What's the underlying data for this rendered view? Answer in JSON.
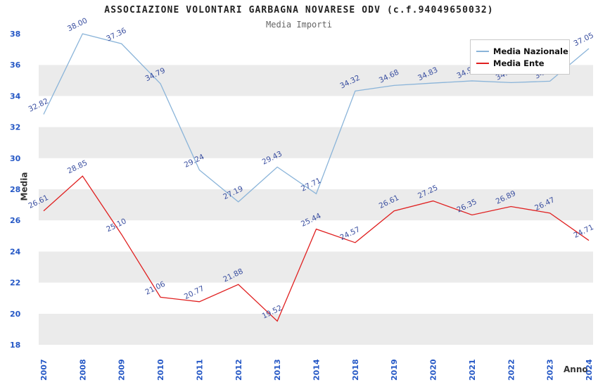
{
  "header": {
    "title": "ASSOCIAZIONE VOLONTARI GARBAGNA NOVARESE ODV (c.f.94049650032)",
    "subtitle": "Media Importi"
  },
  "axes": {
    "y_title": "Media",
    "x_title": "Anno"
  },
  "legend": {
    "position": "top-right",
    "items": [
      {
        "label": "Media Nazionale"
      },
      {
        "label": "Media Ente"
      }
    ]
  },
  "chart_data": {
    "type": "line",
    "categories": [
      "2007",
      "2008",
      "2009",
      "2010",
      "2011",
      "2012",
      "2013",
      "2014",
      "2018",
      "2019",
      "2020",
      "2021",
      "2022",
      "2023",
      "2024"
    ],
    "series": [
      {
        "name": "Media Nazionale",
        "color": "#8ab4d9",
        "values": [
          32.82,
          38.0,
          37.36,
          34.79,
          29.24,
          27.19,
          29.43,
          27.71,
          34.32,
          34.68,
          34.83,
          34.97,
          34.86,
          34.95,
          37.05
        ]
      },
      {
        "name": "Media Ente",
        "color": "#e02020",
        "values": [
          26.61,
          28.85,
          25.1,
          21.06,
          20.77,
          21.88,
          19.52,
          25.44,
          24.57,
          26.61,
          27.25,
          26.35,
          26.89,
          26.47,
          24.71
        ]
      }
    ],
    "ylim": [
      18,
      38
    ],
    "ytick_step": 2,
    "grid_bands": true,
    "band_color": "#ebebeb",
    "tick_color": "#2457c5",
    "data_label_color": "#3a4fa0",
    "legend_position": "top-right"
  }
}
